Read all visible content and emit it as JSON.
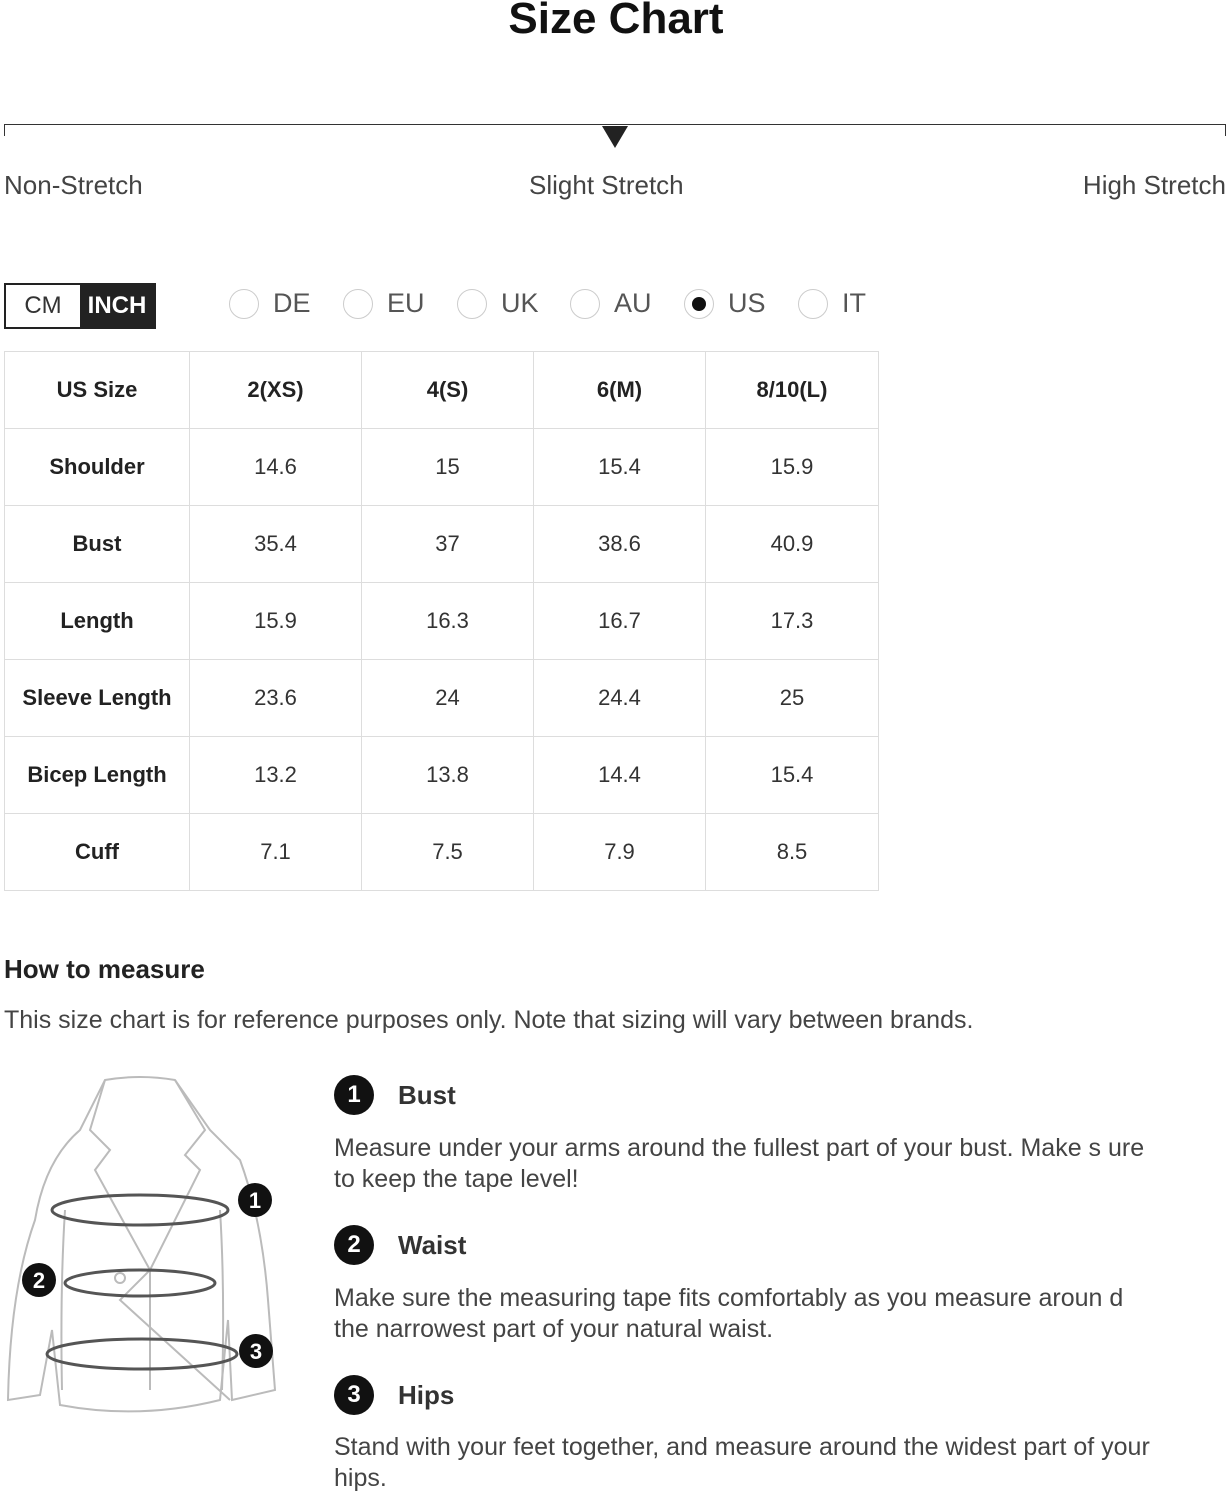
{
  "title": "Size Chart",
  "stretch": {
    "labels": [
      "Non-Stretch",
      "Slight Stretch",
      "High Stretch"
    ],
    "selected": "Slight Stretch"
  },
  "units": {
    "options": [
      "CM",
      "INCH"
    ],
    "selected": "INCH"
  },
  "regions": {
    "options": [
      "DE",
      "EU",
      "UK",
      "AU",
      "US",
      "IT"
    ],
    "selected": "US"
  },
  "table": {
    "headers": [
      "US Size",
      "2(XS)",
      "4(S)",
      "6(M)",
      "8/10(L)"
    ],
    "rows": [
      [
        "Shoulder",
        "14.6",
        "15",
        "15.4",
        "15.9"
      ],
      [
        "Bust",
        "35.4",
        "37",
        "38.6",
        "40.9"
      ],
      [
        "Length",
        "15.9",
        "16.3",
        "16.7",
        "17.3"
      ],
      [
        "Sleeve Length",
        "23.6",
        "24",
        "24.4",
        "25"
      ],
      [
        "Bicep Length",
        "13.2",
        "13.8",
        "14.4",
        "15.4"
      ],
      [
        "Cuff",
        "7.1",
        "7.5",
        "7.9",
        "8.5"
      ]
    ]
  },
  "how_to_measure": {
    "title": "How to measure",
    "note": "This size chart is for reference purposes only. Note that sizing will vary between brands.",
    "steps": [
      {
        "num": "1",
        "title": "Bust",
        "text": "Measure under your arms around the fullest part of your bust. Make s ure to keep the tape level!"
      },
      {
        "num": "2",
        "title": "Waist",
        "text": "Make sure the measuring tape fits comfortably as you measure aroun d the narrowest part of your natural waist."
      },
      {
        "num": "3",
        "title": "Hips",
        "text": "Stand with your feet together, and measure around the widest part of your hips."
      }
    ],
    "illustration_markers": [
      "1",
      "2",
      "3"
    ]
  }
}
